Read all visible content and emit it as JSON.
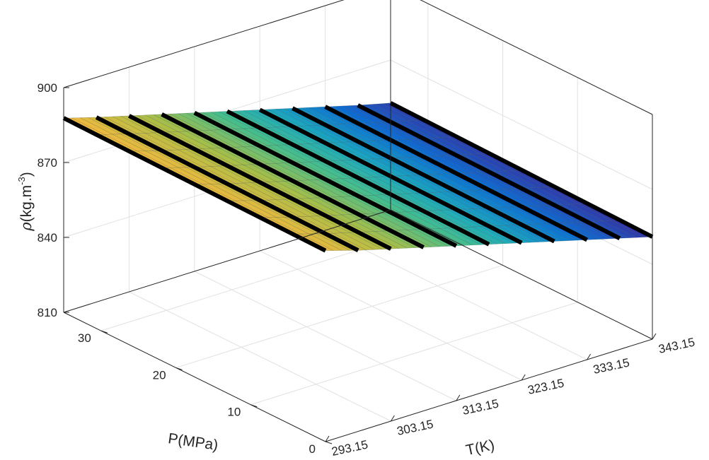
{
  "chart_data": {
    "type": "surface",
    "title": "",
    "xlabel": "T(K)",
    "ylabel": "P(MPa)",
    "zlabel_symbol": "ρ",
    "zlabel_text": "(kg.m",
    "zlabel_exp": "-3",
    "zlabel_close": ")",
    "x_ticks": [
      "293.15",
      "303.15",
      "313.15",
      "323.15",
      "333.15",
      "343.15"
    ],
    "y_ticks": [
      "0",
      "10",
      "20",
      "30"
    ],
    "z_ticks": [
      "810",
      "840",
      "870",
      "900"
    ],
    "xlim": [
      293.15,
      343.15
    ],
    "ylim": [
      0,
      35
    ],
    "zlim": [
      810,
      900
    ],
    "grid": true,
    "colormap": "parula",
    "line_color": "#000000",
    "isotherms_K": [
      293.15,
      298.15,
      303.15,
      308.15,
      313.15,
      318.15,
      323.15,
      328.15,
      333.15,
      338.15,
      343.15
    ],
    "density_at_P0_kg_m3": [
      886.5,
      882.5,
      879.0,
      875.5,
      872.0,
      868.5,
      865.0,
      861.5,
      858.0,
      854.5,
      851.0
    ],
    "density_at_Pmax_kg_m3": [
      887.8,
      884.0,
      880.5,
      877.0,
      873.5,
      870.0,
      866.5,
      863.0,
      859.5,
      856.0,
      852.8
    ]
  }
}
